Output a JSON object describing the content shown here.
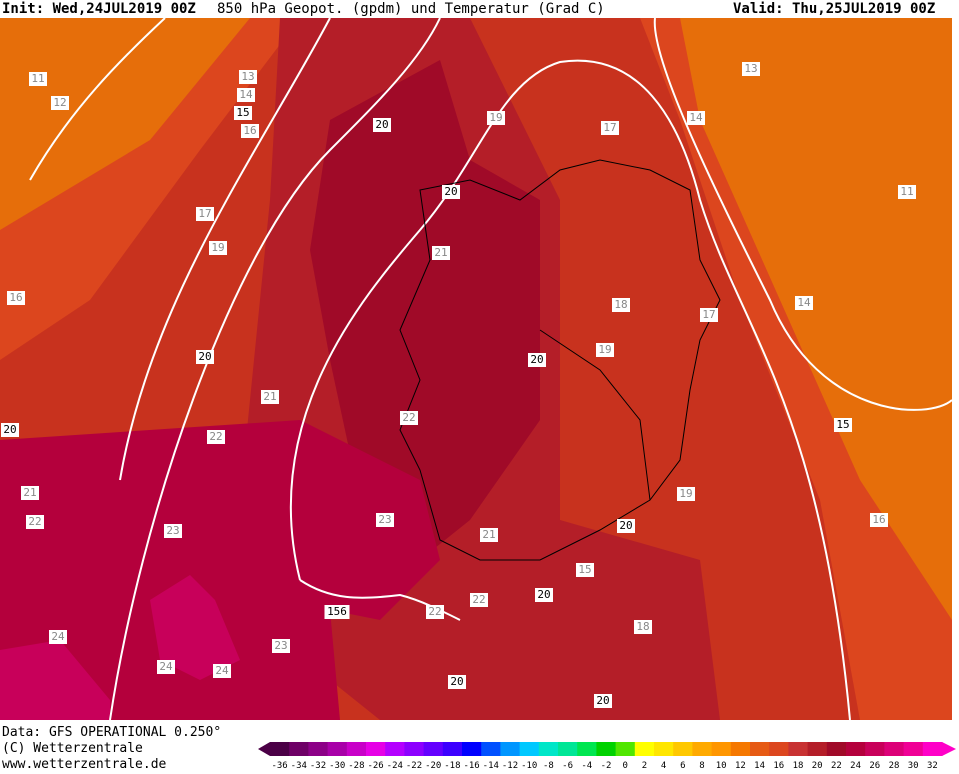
{
  "header": {
    "init": "Init: Wed,24JUL2019 00Z",
    "title": "850 hPa Geopot. (gpdm) und Temperatur (Grad C)",
    "valid": "Valid: Thu,25JUL2019 00Z"
  },
  "footer": {
    "data": "Data: GFS OPERATIONAL 0.250°",
    "copyright": "(C) Wetterzentrale",
    "url": "www.wetterzentrale.de"
  },
  "legend": {
    "labels": [
      -36,
      -34,
      -32,
      -30,
      -28,
      -26,
      -24,
      -22,
      -20,
      -18,
      -16,
      -14,
      -12,
      -10,
      -8,
      -6,
      -4,
      -2,
      0,
      2,
      4,
      6,
      8,
      10,
      12,
      14,
      16,
      18,
      20,
      22,
      24,
      26,
      28,
      30,
      32
    ],
    "colors": [
      "#4b0046",
      "#6e0066",
      "#8c0087",
      "#a800a8",
      "#c800c8",
      "#e600e6",
      "#b400ff",
      "#8c00ff",
      "#6400ff",
      "#3c00ff",
      "#0000ff",
      "#0050ff",
      "#0096ff",
      "#00c8ff",
      "#00e6c8",
      "#00e696",
      "#00e650",
      "#00d200",
      "#50e600",
      "#ffff00",
      "#ffe600",
      "#ffc800",
      "#ffaa00",
      "#ff9600",
      "#f57800",
      "#e65a14",
      "#dc461e",
      "#c83232",
      "#b41e28",
      "#a00a28",
      "#b4003c",
      "#c8005a",
      "#dc0078",
      "#f00096",
      "#ff00c8"
    ]
  },
  "map": {
    "labels": [
      11,
      12,
      13,
      14,
      15,
      16,
      17,
      19,
      16,
      20,
      21,
      22,
      23,
      22,
      21,
      20,
      24,
      24,
      24,
      23,
      156,
      22,
      23,
      22,
      21,
      20,
      20,
      19,
      17,
      13,
      14,
      11,
      14,
      17,
      18,
      19,
      20,
      15,
      19,
      16,
      20,
      21,
      15,
      22,
      20,
      18,
      20,
      20
    ]
  }
}
